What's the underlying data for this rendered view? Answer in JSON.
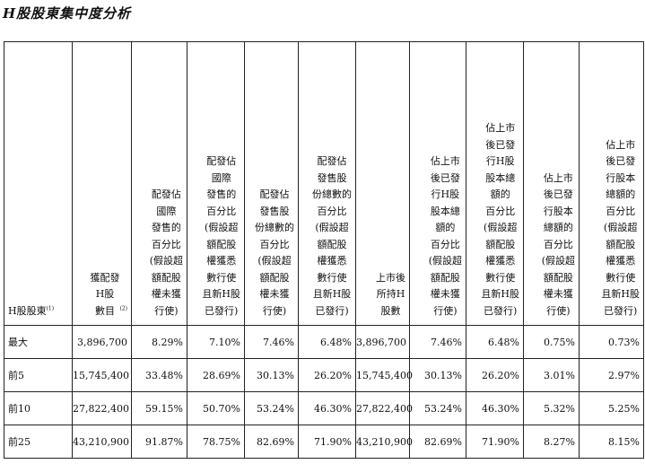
{
  "title": "H股股東集中度分析",
  "headers": [
    {
      "text": "H股股東",
      "note": "(1)"
    },
    {
      "text": "獲配發\nH股\n數目",
      "note": "(2)"
    },
    {
      "text": "配發佔\n國際\n發售的\n百分比\n(假設超\n額配股\n權未獲\n行使)",
      "note": ""
    },
    {
      "text": "配發佔\n國際\n發售的\n百分比\n(假設超\n額配股\n權獲悉\n數行使\n且新H股\n已發行)",
      "note": ""
    },
    {
      "text": "配發佔\n發售股\n份總數的\n百分比\n(假設超\n額配股\n權未獲\n行使)",
      "note": ""
    },
    {
      "text": "配發佔\n發售股\n份總數的\n百分比\n(假設超\n額配股\n權獲悉\n數行使\n且新H股\n已發行)",
      "note": ""
    },
    {
      "text": "上市後\n所持H\n股數",
      "note": ""
    },
    {
      "text": "佔上市\n後已發\n行H股\n股本總\n額的\n百分比\n(假設超\n額配股\n權未獲\n行使)",
      "note": ""
    },
    {
      "text": "佔上市\n後已發\n行H股\n股本總\n額的\n百分比\n(假設超\n額配股\n權獲悉\n數行使\n且新H股\n已發行)",
      "note": ""
    },
    {
      "text": "佔上市\n後已發\n行股本\n總額的\n百分比\n(假設超\n額配股\n權未獲\n行使)",
      "note": ""
    },
    {
      "text": "佔上市\n後已發\n行股本\n總額的\n百分比\n(假設超\n額配股\n權獲悉\n數行使\n且新H股\n已發行)",
      "note": ""
    }
  ],
  "rows": [
    [
      "最大",
      "3,896,700",
      "8.29%",
      "7.10%",
      "7.46%",
      "6.48%",
      "3,896,700",
      "7.46%",
      "6.48%",
      "0.75%",
      "0.73%"
    ],
    [
      "前5",
      "15,745,400",
      "33.48%",
      "28.69%",
      "30.13%",
      "26.20%",
      "15,745,400",
      "30.13%",
      "26.20%",
      "3.01%",
      "2.97%"
    ],
    [
      "前10",
      "27,822,400",
      "59.15%",
      "50.70%",
      "53.24%",
      "46.30%",
      "27,822,400",
      "53.24%",
      "46.30%",
      "5.32%",
      "5.25%"
    ],
    [
      "前25",
      "43,210,900",
      "91.87%",
      "78.75%",
      "82.69%",
      "71.90%",
      "43,210,900",
      "82.69%",
      "71.90%",
      "8.27%",
      "8.15%"
    ]
  ]
}
